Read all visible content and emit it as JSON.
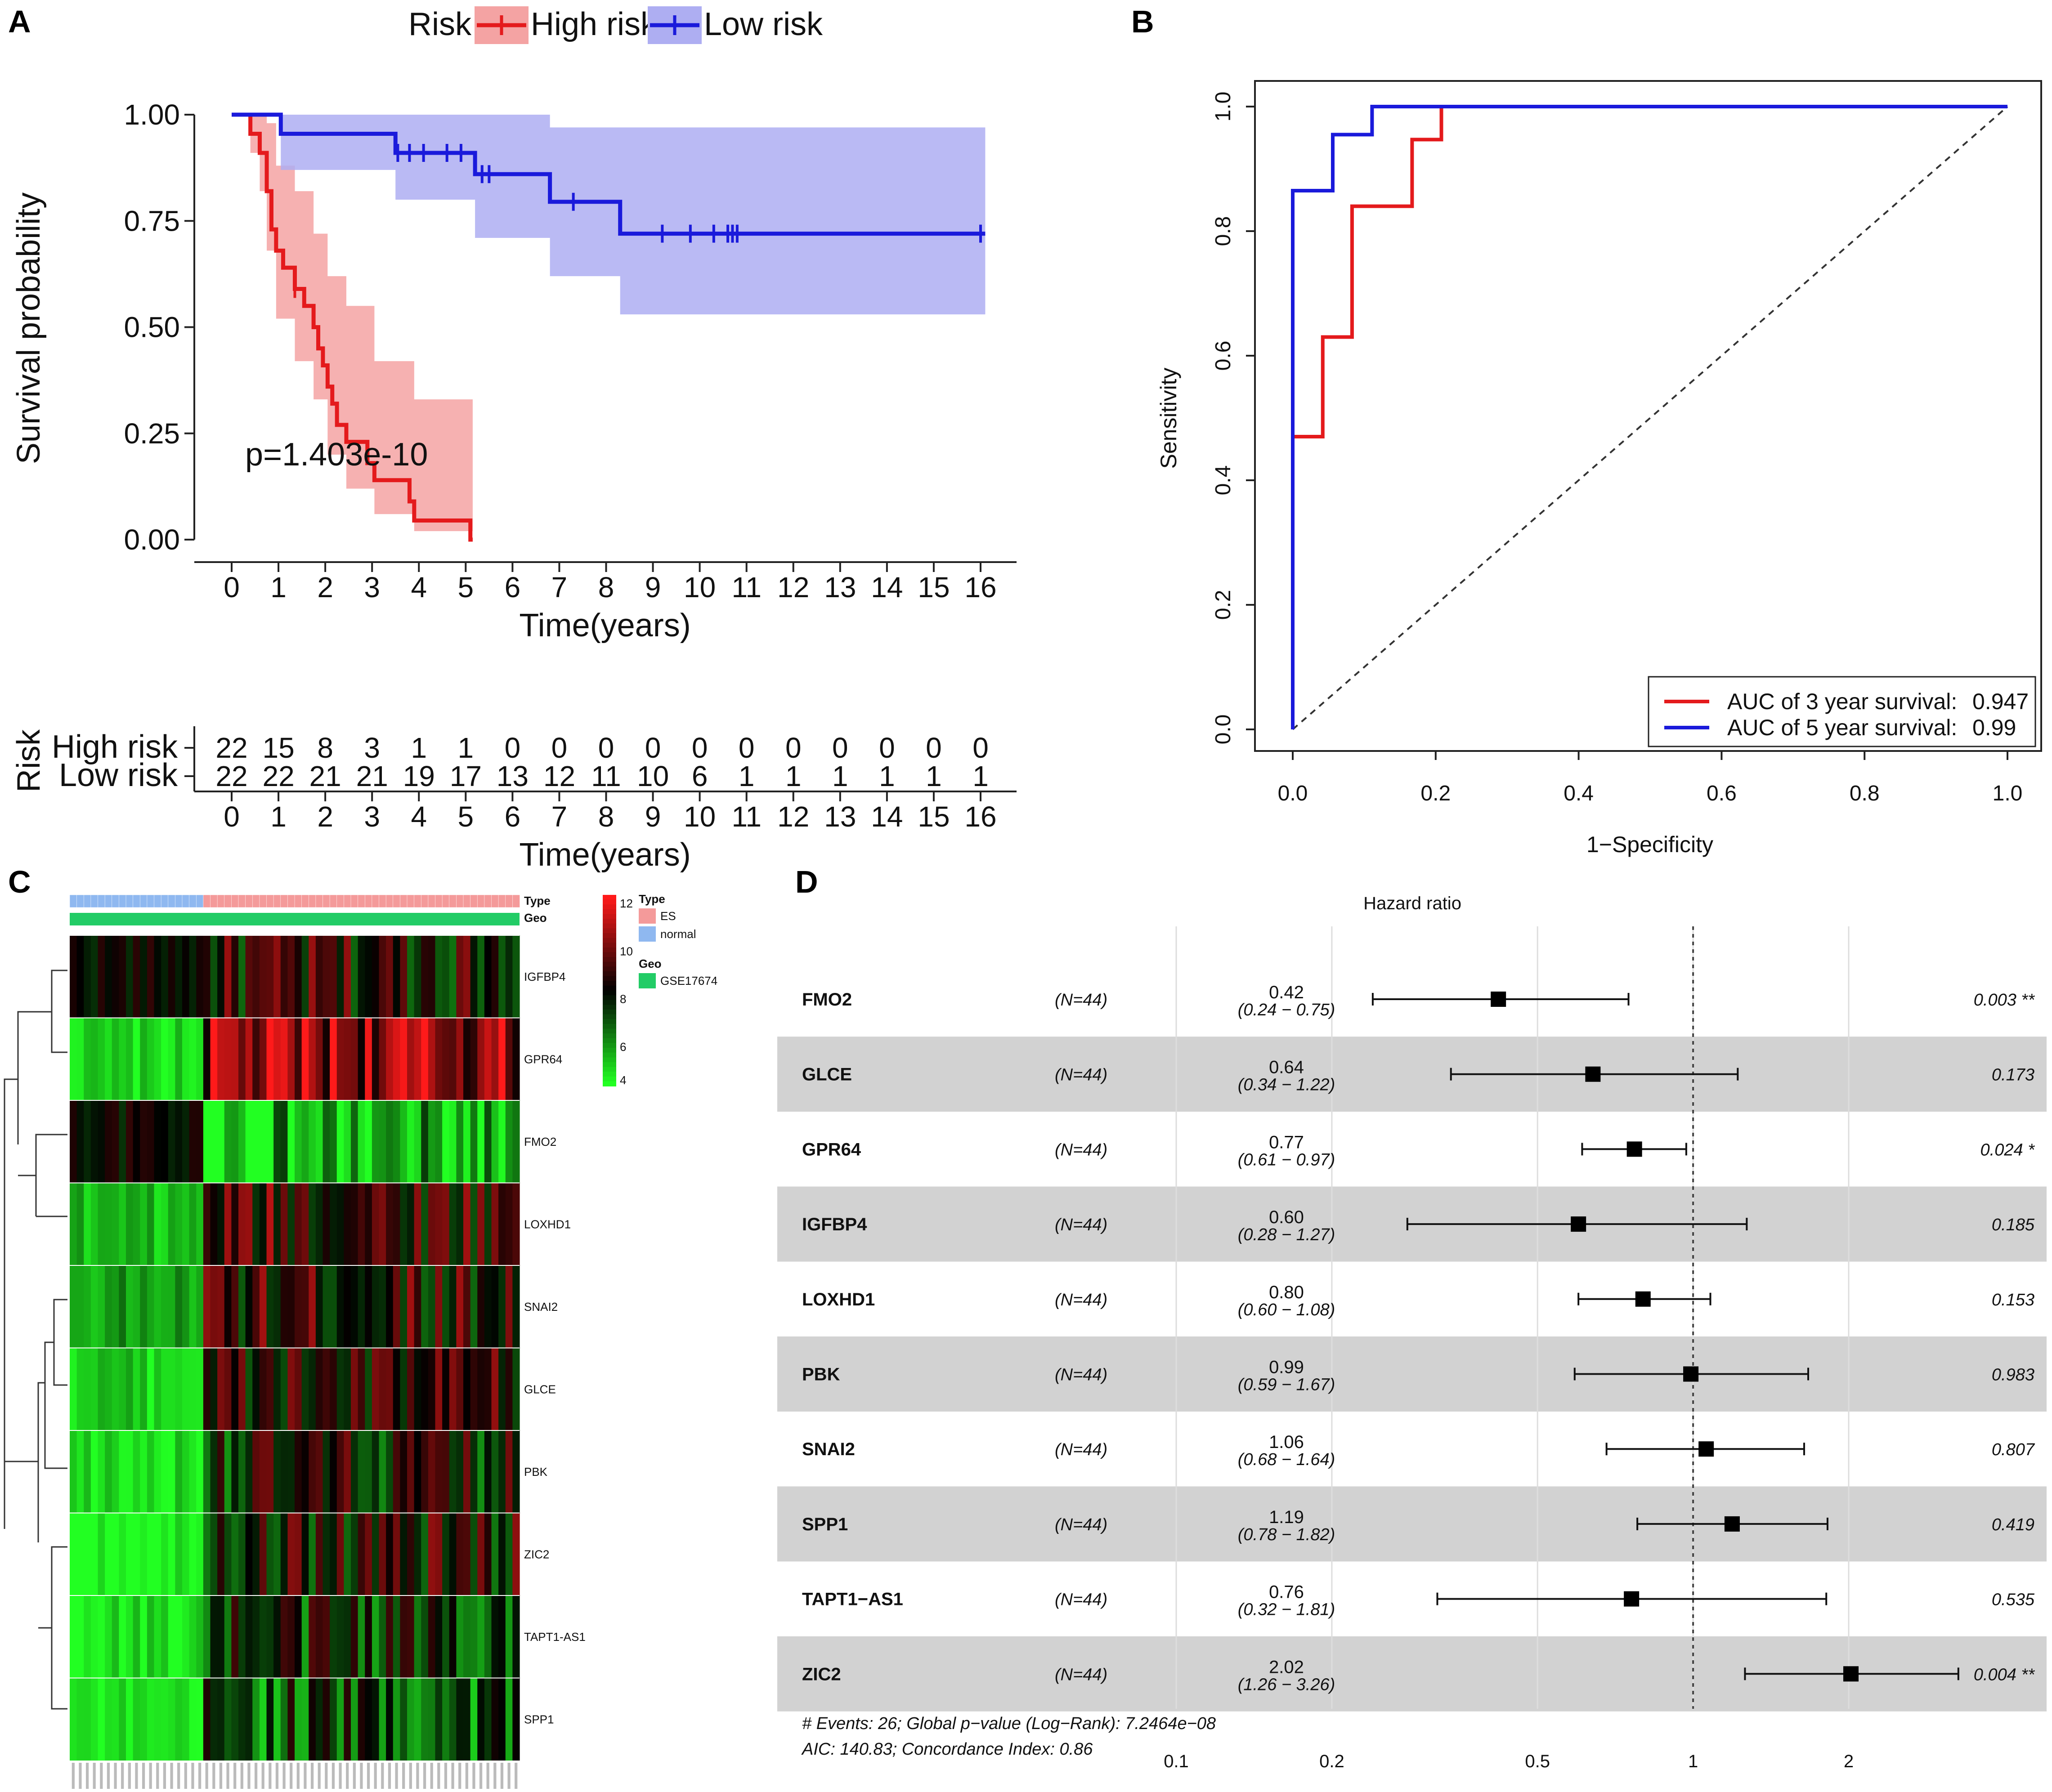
{
  "panels": {
    "a": "A",
    "b": "B",
    "c": "C",
    "d": "D"
  },
  "chart_data": [
    {
      "type": "line",
      "panel": "A",
      "xlabel": "Time(years)",
      "ylabel": "Survival probability",
      "xlim": [
        0,
        16
      ],
      "ylim": [
        0,
        1
      ],
      "x_ticks": [
        "0",
        "1",
        "2",
        "3",
        "4",
        "5",
        "6",
        "7",
        "8",
        "9",
        "10",
        "11",
        "12",
        "13",
        "14",
        "15",
        "16"
      ],
      "y_ticks": [
        "0.00",
        "0.25",
        "0.50",
        "0.75",
        "1.00"
      ],
      "legend_title": "Risk",
      "legend_position": "top",
      "annotation": "p=1.403e-10",
      "series": [
        {
          "name": "High risk",
          "color": "#e41a1c",
          "ci_color": "#f4a3a3",
          "steps": [
            [
              0,
              1.0
            ],
            [
              0.4,
              0.955
            ],
            [
              0.6,
              0.91
            ],
            [
              0.75,
              0.82
            ],
            [
              0.85,
              0.73
            ],
            [
              0.95,
              0.68
            ],
            [
              1.1,
              0.64
            ],
            [
              1.35,
              0.59
            ],
            [
              1.55,
              0.55
            ],
            [
              1.75,
              0.5
            ],
            [
              1.85,
              0.45
            ],
            [
              1.95,
              0.41
            ],
            [
              2.05,
              0.36
            ],
            [
              2.15,
              0.32
            ],
            [
              2.25,
              0.27
            ],
            [
              2.45,
              0.23
            ],
            [
              2.9,
              0.18
            ],
            [
              3.05,
              0.14
            ],
            [
              3.8,
              0.09
            ],
            [
              3.9,
              0.045
            ],
            [
              5.1,
              0.0
            ],
            [
              5.15,
              0.0
            ]
          ],
          "ci": [
            [
              0,
              1.0,
              1.0
            ],
            [
              0.4,
              0.91,
              1.0
            ],
            [
              0.6,
              0.82,
              1.0
            ],
            [
              0.75,
              0.68,
              0.98
            ],
            [
              0.95,
              0.52,
              0.88
            ],
            [
              1.35,
              0.42,
              0.82
            ],
            [
              1.75,
              0.33,
              0.72
            ],
            [
              2.05,
              0.2,
              0.62
            ],
            [
              2.45,
              0.12,
              0.55
            ],
            [
              3.05,
              0.06,
              0.42
            ],
            [
              3.9,
              0.02,
              0.33
            ],
            [
              5.15,
              0.0,
              0.33
            ]
          ],
          "censor": [
            [
              1.35,
              0.59
            ]
          ],
          "at_risk": [
            22,
            15,
            8,
            3,
            1,
            1,
            0,
            0,
            0,
            0,
            0,
            0,
            0,
            0,
            0,
            0,
            0
          ]
        },
        {
          "name": "Low risk",
          "color": "#1a1adb",
          "ci_color": "#aeaef2",
          "steps": [
            [
              0,
              1.0
            ],
            [
              1.05,
              0.955
            ],
            [
              3.5,
              0.91
            ],
            [
              5.2,
              0.86
            ],
            [
              6.8,
              0.795
            ],
            [
              8.3,
              0.72
            ],
            [
              16.1,
              0.72
            ]
          ],
          "ci": [
            [
              0,
              1.0,
              1.0
            ],
            [
              1.05,
              0.87,
              1.0
            ],
            [
              3.5,
              0.8,
              1.0
            ],
            [
              5.2,
              0.71,
              1.0
            ],
            [
              6.8,
              0.62,
              0.97
            ],
            [
              8.3,
              0.53,
              0.97
            ],
            [
              16.1,
              0.53,
              0.97
            ]
          ],
          "censor": [
            [
              3.55,
              0.91
            ],
            [
              3.8,
              0.91
            ],
            [
              4.1,
              0.91
            ],
            [
              4.6,
              0.91
            ],
            [
              4.9,
              0.91
            ],
            [
              5.35,
              0.86
            ],
            [
              5.5,
              0.86
            ],
            [
              7.3,
              0.795
            ],
            [
              9.2,
              0.72
            ],
            [
              9.8,
              0.72
            ],
            [
              10.3,
              0.72
            ],
            [
              10.6,
              0.72
            ],
            [
              10.7,
              0.72
            ],
            [
              10.8,
              0.72
            ],
            [
              16.0,
              0.72
            ]
          ],
          "at_risk": [
            22,
            22,
            21,
            21,
            19,
            17,
            13,
            12,
            11,
            10,
            6,
            1,
            1,
            1,
            1,
            1,
            1
          ]
        }
      ],
      "risk_table": {
        "ylabel": "Risk",
        "xlabel": "Time(years)",
        "rows": [
          "High risk",
          "Low risk"
        ]
      }
    },
    {
      "type": "line",
      "panel": "B",
      "xlabel": "1−Specificity",
      "ylabel": "Sensitivity",
      "xlim": [
        0,
        1
      ],
      "ylim": [
        0,
        1
      ],
      "x_ticks": [
        "0.0",
        "0.2",
        "0.4",
        "0.6",
        "0.8",
        "1.0"
      ],
      "y_ticks": [
        "0.0",
        "0.2",
        "0.4",
        "0.6",
        "0.8",
        "1.0"
      ],
      "reference_line": "diagonal dashed",
      "legend_position": "bottom-right",
      "series": [
        {
          "name": "AUC of 3 year survival:",
          "auc": "0.947",
          "color": "#e41a1c",
          "points": [
            [
              0,
              0
            ],
            [
              0,
              0.47
            ],
            [
              0.042,
              0.47
            ],
            [
              0.042,
              0.63
            ],
            [
              0.083,
              0.63
            ],
            [
              0.083,
              0.84
            ],
            [
              0.167,
              0.84
            ],
            [
              0.167,
              0.947
            ],
            [
              0.208,
              0.947
            ],
            [
              0.208,
              1.0
            ],
            [
              1.0,
              1.0
            ]
          ]
        },
        {
          "name": "AUC of 5 year survival:",
          "auc": "0.99",
          "color": "#1a1adb",
          "points": [
            [
              0,
              0
            ],
            [
              0,
              0.865
            ],
            [
              0.056,
              0.865
            ],
            [
              0.056,
              0.955
            ],
            [
              0.111,
              0.955
            ],
            [
              0.111,
              1.0
            ],
            [
              1.0,
              1.0
            ]
          ]
        }
      ]
    },
    {
      "type": "heatmap",
      "panel": "C",
      "rows": [
        "IGFBP4",
        "GPR64",
        "FMO2",
        "LOXHD1",
        "SNAI2",
        "GLCE",
        "PBK",
        "ZIC2",
        "TAPT1-AS1",
        "SPP1"
      ],
      "n_columns": 64,
      "n_normal": 19,
      "color_scale": {
        "min": 4,
        "max": 12,
        "low": "#22ff22",
        "mid": "#000000",
        "high": "#ff1a1a",
        "ticks": [
          "12",
          "10",
          "8",
          "6",
          "4"
        ]
      },
      "annotation_rows": [
        "Type",
        "Geo"
      ],
      "legend": {
        "type_title": "Type",
        "type_levels": [
          {
            "label": "ES",
            "color": "#f49a9a"
          },
          {
            "label": "normal",
            "color": "#8fb8f0"
          }
        ],
        "geo_title": "Geo",
        "geo_levels": [
          {
            "label": "GSE17674",
            "color": "#22cc66"
          }
        ]
      },
      "row_profile": [
        {
          "gene": "IGFBP4",
          "normal": 8.0,
          "tumor": 8.3
        },
        {
          "gene": "GPR64",
          "normal": 4.5,
          "tumor": 10.2
        },
        {
          "gene": "FMO2",
          "normal": 8.0,
          "tumor": 5.0
        },
        {
          "gene": "LOXHD1",
          "normal": 5.0,
          "tumor": 8.8
        },
        {
          "gene": "SNAI2",
          "normal": 5.5,
          "tumor": 8.5
        },
        {
          "gene": "GLCE",
          "normal": 4.8,
          "tumor": 8.2
        },
        {
          "gene": "PBK",
          "normal": 4.5,
          "tumor": 7.8
        },
        {
          "gene": "ZIC2",
          "normal": 4.3,
          "tumor": 8.2
        },
        {
          "gene": "TAPT1-AS1",
          "normal": 4.5,
          "tumor": 7.4
        },
        {
          "gene": "SPP1",
          "normal": 4.2,
          "tumor": 6.8
        }
      ]
    },
    {
      "type": "scatter",
      "panel": "D",
      "title": "Hazard ratio",
      "x_scale": "log",
      "x_ticks": [
        "0.1",
        "0.2",
        "0.5",
        "1",
        "2"
      ],
      "rows": [
        {
          "gene": "FMO2",
          "n": "(N=44)",
          "hr": 0.42,
          "hr_label": "0.42",
          "ci_label": "(0.24 − 0.75)",
          "lo": 0.24,
          "hi": 0.75,
          "p": "0.003 **"
        },
        {
          "gene": "GLCE",
          "n": "(N=44)",
          "hr": 0.64,
          "hr_label": "0.64",
          "ci_label": "(0.34 − 1.22)",
          "lo": 0.34,
          "hi": 1.22,
          "p": "0.173"
        },
        {
          "gene": "GPR64",
          "n": "(N=44)",
          "hr": 0.77,
          "hr_label": "0.77",
          "ci_label": "(0.61 − 0.97)",
          "lo": 0.61,
          "hi": 0.97,
          "p": "0.024 *"
        },
        {
          "gene": "IGFBP4",
          "n": "(N=44)",
          "hr": 0.6,
          "hr_label": "0.60",
          "ci_label": "(0.28 − 1.27)",
          "lo": 0.28,
          "hi": 1.27,
          "p": "0.185"
        },
        {
          "gene": "LOXHD1",
          "n": "(N=44)",
          "hr": 0.8,
          "hr_label": "0.80",
          "ci_label": "(0.60 − 1.08)",
          "lo": 0.6,
          "hi": 1.08,
          "p": "0.153"
        },
        {
          "gene": "PBK",
          "n": "(N=44)",
          "hr": 0.99,
          "hr_label": "0.99",
          "ci_label": "(0.59 − 1.67)",
          "lo": 0.59,
          "hi": 1.67,
          "p": "0.983"
        },
        {
          "gene": "SNAI2",
          "n": "(N=44)",
          "hr": 1.06,
          "hr_label": "1.06",
          "ci_label": "(0.68 − 1.64)",
          "lo": 0.68,
          "hi": 1.64,
          "p": "0.807"
        },
        {
          "gene": "SPP1",
          "n": "(N=44)",
          "hr": 1.19,
          "hr_label": "1.19",
          "ci_label": "(0.78 − 1.82)",
          "lo": 0.78,
          "hi": 1.82,
          "p": "0.419"
        },
        {
          "gene": "TAPT1−AS1",
          "n": "(N=44)",
          "hr": 0.76,
          "hr_label": "0.76",
          "ci_label": "(0.32 − 1.81)",
          "lo": 0.32,
          "hi": 1.81,
          "p": "0.535"
        },
        {
          "gene": "ZIC2",
          "n": "(N=44)",
          "hr": 2.02,
          "hr_label": "2.02",
          "ci_label": "(1.26 − 3.26)",
          "lo": 1.26,
          "hi": 3.26,
          "p": "0.004 **"
        }
      ],
      "footer_line1": "# Events: 26; Global p−value (Log−Rank): 7.2464e−08",
      "footer_line2": "AIC: 140.83; Concordance Index: 0.86"
    }
  ]
}
